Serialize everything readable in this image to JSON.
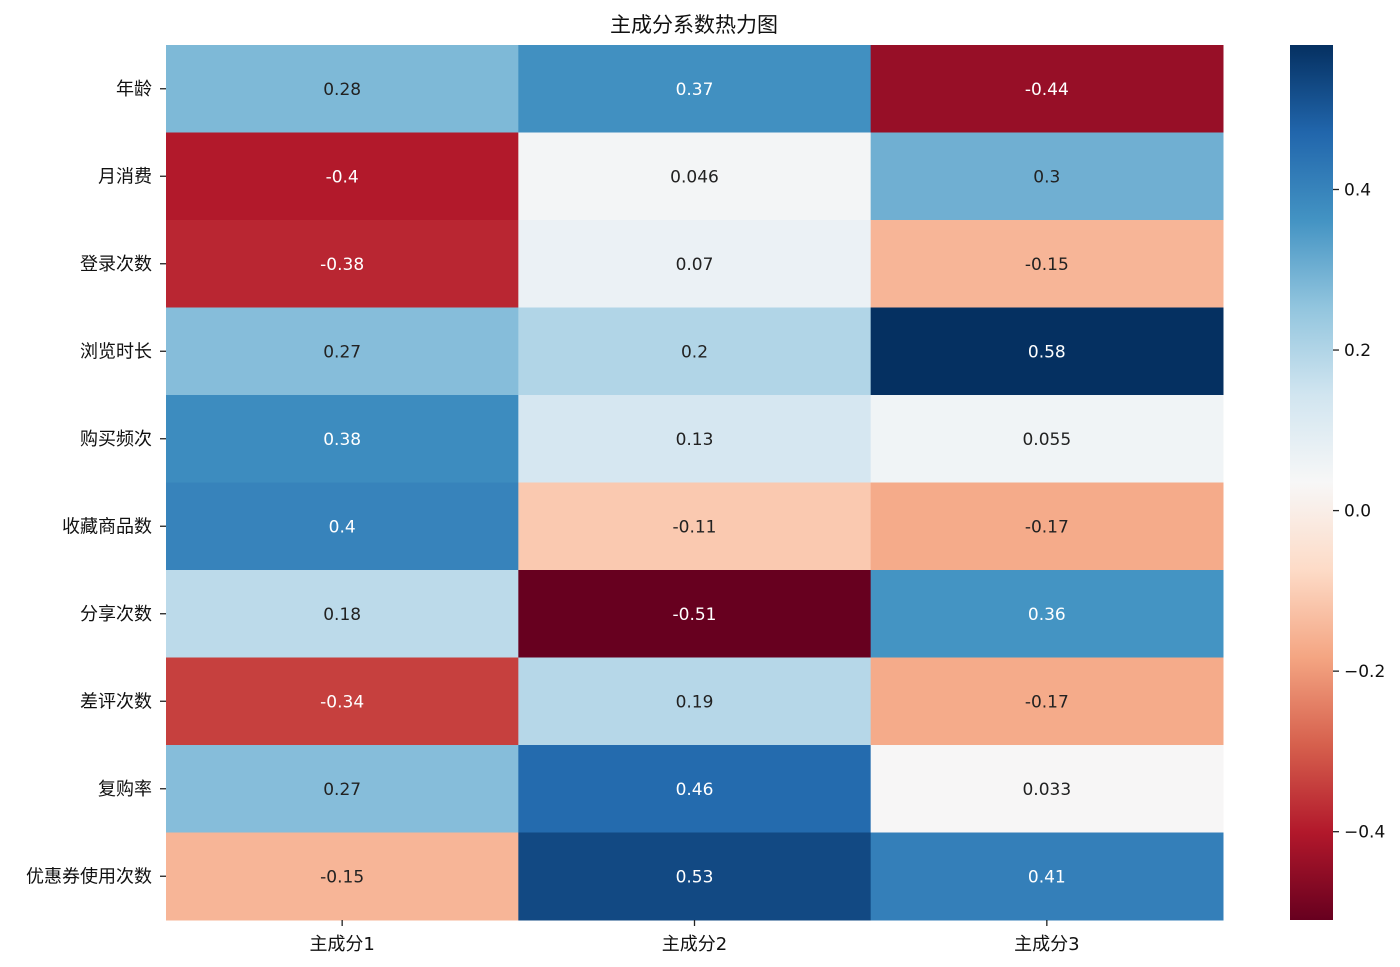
{
  "chart_data": {
    "type": "heatmap",
    "title": "主成分系数热力图",
    "x_categories": [
      "主成分1",
      "主成分2",
      "主成分3"
    ],
    "y_categories": [
      "年龄",
      "月消费",
      "登录次数",
      "浏览时长",
      "购买频次",
      "收藏商品数",
      "分享次数",
      "差评次数",
      "复购率",
      "优惠券使用次数"
    ],
    "values": [
      [
        0.28,
        0.37,
        -0.44
      ],
      [
        -0.4,
        0.046,
        0.3
      ],
      [
        -0.38,
        0.07,
        -0.15
      ],
      [
        0.27,
        0.2,
        0.58
      ],
      [
        0.38,
        0.13,
        0.055
      ],
      [
        0.4,
        -0.11,
        -0.17
      ],
      [
        0.18,
        -0.51,
        0.36
      ],
      [
        -0.34,
        0.19,
        -0.17
      ],
      [
        0.27,
        0.46,
        0.033
      ],
      [
        -0.15,
        0.53,
        0.41
      ]
    ],
    "value_labels": [
      [
        "0.28",
        "0.37",
        "-0.44"
      ],
      [
        "-0.4",
        "0.046",
        "0.3"
      ],
      [
        "-0.38",
        "0.07",
        "-0.15"
      ],
      [
        "0.27",
        "0.2",
        "0.58"
      ],
      [
        "0.38",
        "0.13",
        "0.055"
      ],
      [
        "0.4",
        "-0.11",
        "-0.17"
      ],
      [
        "0.18",
        "-0.51",
        "0.36"
      ],
      [
        "-0.34",
        "0.19",
        "-0.17"
      ],
      [
        "0.27",
        "0.46",
        "0.033"
      ],
      [
        "-0.15",
        "0.53",
        "0.41"
      ]
    ],
    "colormap": "RdBu",
    "colorbar": {
      "range": [
        -0.51,
        0.58
      ],
      "ticks": [
        -0.4,
        -0.2,
        0.0,
        0.2,
        0.4
      ],
      "tick_labels": [
        "−0.4",
        "−0.2",
        "0.0",
        "0.2",
        "0.4"
      ]
    }
  }
}
